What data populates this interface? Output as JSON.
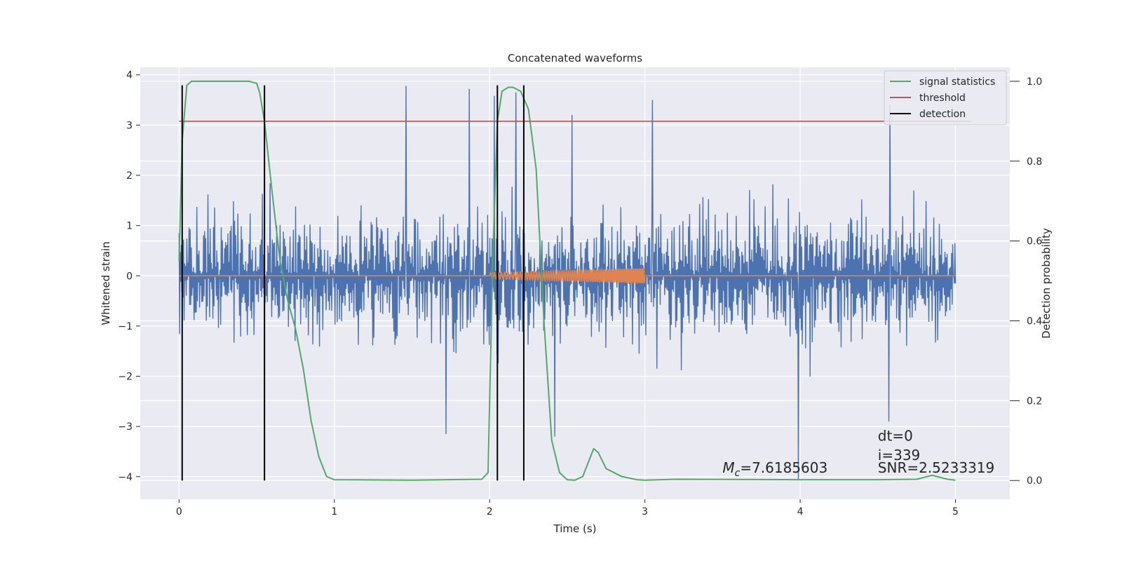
{
  "chart_data": {
    "type": "line",
    "title": "Concatenated waveforms",
    "xlabel": "Time (s)",
    "ylabel_left": "Whitened strain",
    "ylabel_right": "Detection probability",
    "xlim": [
      -0.25,
      5.35
    ],
    "ylim_left": [
      -4.45,
      4.15
    ],
    "ylim_right": [
      -0.047,
      1.035
    ],
    "xticks": [
      0,
      1,
      2,
      3,
      4,
      5
    ],
    "yticks_left": [
      -4,
      -3,
      -2,
      -1,
      0,
      1,
      2,
      3,
      4
    ],
    "yticks_right": [
      0.0,
      0.2,
      0.4,
      0.6,
      0.8,
      1.0
    ],
    "grid": true,
    "legend_position": "top-right",
    "series": [
      {
        "name": "",
        "axis": "left",
        "style": "noise",
        "color": "#4c72b0",
        "x_range": [
          0,
          5
        ],
        "amplitude_typical": 2.2,
        "amplitude_max": 3.8,
        "extremes": [
          {
            "x": 1.46,
            "y": 3.78
          },
          {
            "x": 1.87,
            "y": 3.72
          },
          {
            "x": 2.03,
            "y": 3.58
          },
          {
            "x": 2.17,
            "y": 3.65
          },
          {
            "x": 2.53,
            "y": 3.2
          },
          {
            "x": 3.05,
            "y": 3.5
          },
          {
            "x": 1.72,
            "y": -3.15
          },
          {
            "x": 2.42,
            "y": -3.2
          },
          {
            "x": 3.99,
            "y": -4.05
          },
          {
            "x": 4.57,
            "y": -2.9
          },
          {
            "x": 4.58,
            "y": 3.4
          }
        ]
      },
      {
        "name": "",
        "axis": "left",
        "style": "line",
        "color": "#dd8452",
        "x": [
          0,
          5
        ],
        "y": [
          0,
          0
        ]
      },
      {
        "name": "",
        "axis": "left",
        "style": "chirp",
        "color": "#dd8452",
        "x_range": [
          2.0,
          3.0
        ],
        "amplitude_range": [
          0.06,
          0.15
        ],
        "frequency_range": [
          40,
          75
        ]
      },
      {
        "name": "signal statistics",
        "axis": "right",
        "style": "line",
        "color": "#55a868",
        "x": [
          0,
          0.02,
          0.05,
          0.08,
          0.15,
          0.3,
          0.45,
          0.5,
          0.52,
          0.55,
          0.6,
          0.65,
          0.7,
          0.75,
          0.8,
          0.85,
          0.9,
          0.95,
          1.0,
          1.5,
          1.95,
          1.99,
          2.02,
          2.05,
          2.08,
          2.12,
          2.15,
          2.2,
          2.25,
          2.3,
          2.35,
          2.4,
          2.45,
          2.5,
          2.55,
          2.6,
          2.63,
          2.67,
          2.7,
          2.75,
          2.85,
          2.95,
          3.0,
          3.2,
          4.0,
          4.5,
          4.75,
          4.85,
          4.95,
          5.0
        ],
        "y": [
          0.55,
          0.85,
          0.99,
          1.0,
          1.0,
          1.0,
          1.0,
          0.995,
          0.97,
          0.9,
          0.72,
          0.55,
          0.45,
          0.38,
          0.28,
          0.15,
          0.06,
          0.01,
          0.002,
          0.001,
          0.003,
          0.02,
          0.55,
          0.9,
          0.975,
          0.985,
          0.985,
          0.975,
          0.93,
          0.78,
          0.4,
          0.1,
          0.02,
          0.002,
          0.001,
          0.01,
          0.04,
          0.08,
          0.07,
          0.03,
          0.01,
          0.002,
          0.001,
          0.003,
          0.002,
          0.002,
          0.003,
          0.013,
          0.003,
          0.001
        ]
      },
      {
        "name": "threshold",
        "axis": "right",
        "style": "line",
        "color": "#c44e52",
        "x": [
          0,
          5.1
        ],
        "y": [
          0.9,
          0.9
        ]
      },
      {
        "name": "detection",
        "axis": "right",
        "style": "vlines",
        "color": "#000000",
        "x": [
          0.02,
          0.55,
          2.05,
          2.22
        ],
        "ymin": 0.0,
        "ymax": 0.99
      }
    ],
    "annotations": [
      {
        "text_prefix": "M",
        "text_sub": "c",
        "text_suffix": "=7.6185603",
        "x": 3.5,
        "y": 0.03
      },
      {
        "text": "dt=0",
        "x": 4.5,
        "y": 0.11
      },
      {
        "text": "i=339",
        "x": 4.5,
        "y": 0.062
      },
      {
        "text": "SNR=2.5233319",
        "x": 4.5,
        "y": 0.03
      }
    ]
  }
}
